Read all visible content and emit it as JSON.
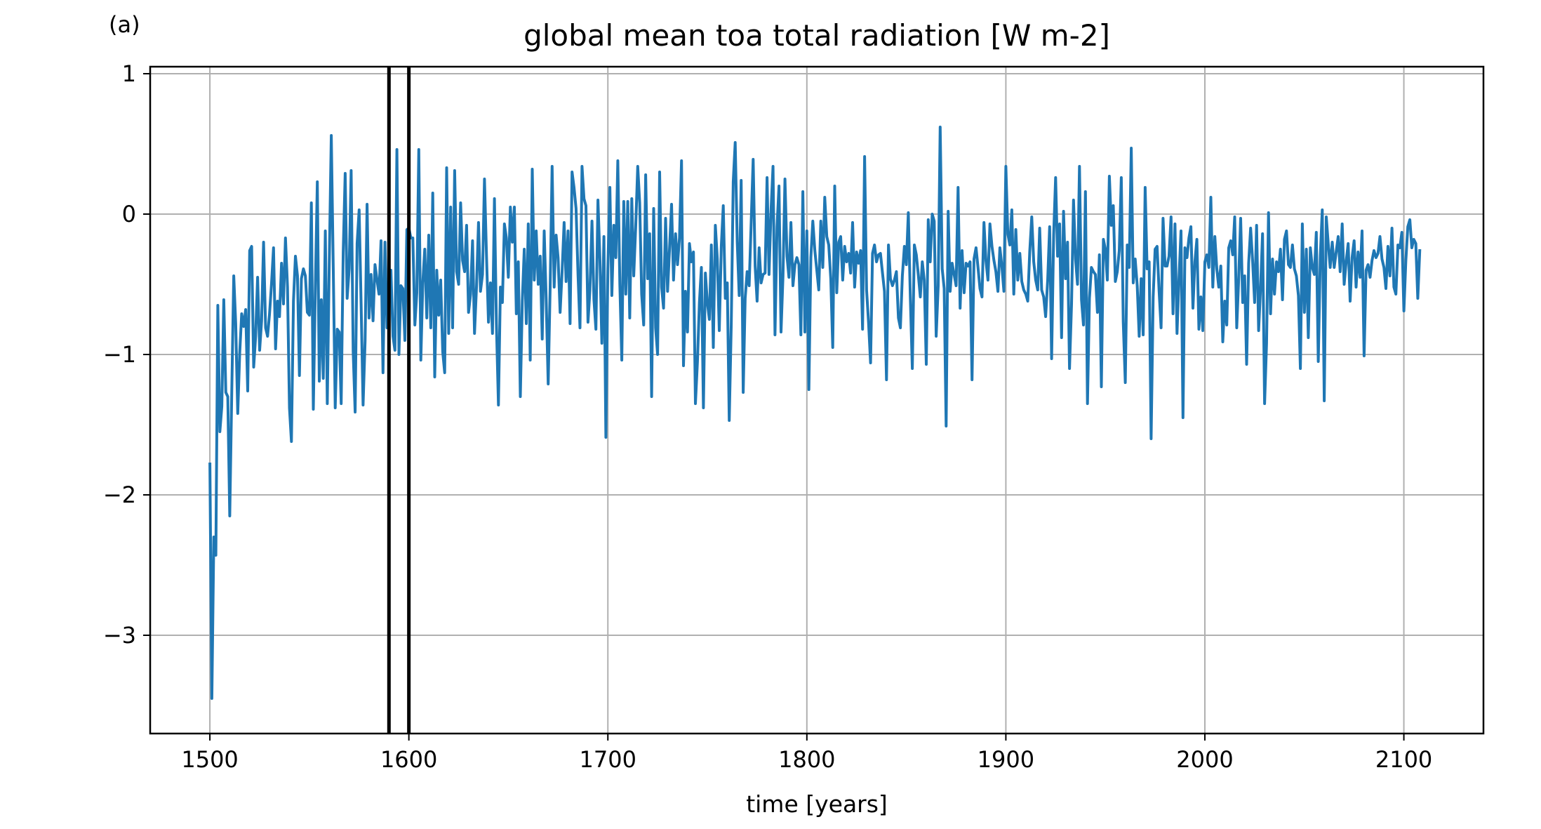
{
  "chart_data": {
    "type": "line",
    "panel_label": "(a)",
    "title": "global mean toa total radiation [W m-2]",
    "xlabel": "time [years]",
    "ylabel": "",
    "xlim": [
      1470,
      2140
    ],
    "ylim": [
      -3.7,
      1.05
    ],
    "xticks": [
      1500,
      1600,
      1700,
      1800,
      1900,
      2000,
      2100
    ],
    "yticks": [
      1,
      0,
      -1,
      -2,
      -3
    ],
    "ytick_labels": [
      "1",
      "0",
      "−1",
      "−2",
      "−3"
    ],
    "grid": true,
    "legend": "none",
    "vlines": [
      1590,
      1600
    ],
    "vline_color": "#000000",
    "series": [
      {
        "color": "#1f77b4",
        "x_start": 1500,
        "x_step": 1,
        "values": [
          -1.77,
          -3.45,
          -2.3,
          -2.43,
          -0.65,
          -1.55,
          -1.37,
          -0.61,
          -1.27,
          -1.3,
          -2.15,
          -1.26,
          -0.44,
          -0.78,
          -1.42,
          -0.99,
          -0.71,
          -0.8,
          -0.68,
          -1.26,
          -0.26,
          -0.23,
          -1.09,
          -0.87,
          -0.45,
          -0.97,
          -0.76,
          -0.2,
          -0.81,
          -0.87,
          -0.71,
          -0.49,
          -0.24,
          -0.96,
          -0.62,
          -0.73,
          -0.35,
          -0.64,
          -0.17,
          -0.52,
          -1.38,
          -1.62,
          -0.62,
          -0.3,
          -0.44,
          -1.15,
          -0.46,
          -0.39,
          -0.44,
          -0.7,
          -0.72,
          0.08,
          -1.39,
          -0.52,
          0.23,
          -1.19,
          -0.61,
          -1.17,
          -0.12,
          -1.35,
          -0.35,
          0.56,
          -0.38,
          -1.38,
          -0.82,
          -0.84,
          -1.35,
          -0.27,
          0.29,
          -0.6,
          -0.39,
          0.31,
          -0.98,
          -1.41,
          -0.21,
          0.03,
          -0.64,
          -1.36,
          -0.9,
          0.07,
          -0.74,
          -0.43,
          -0.76,
          -0.36,
          -0.47,
          -0.57,
          -0.19,
          -1.13,
          -0.2,
          -0.81,
          -0.56,
          -0.4,
          -0.87,
          -0.97,
          0.46,
          -1.0,
          -0.51,
          -0.53,
          -0.9,
          -0.11,
          -0.1,
          -0.17,
          -0.17,
          -0.79,
          -0.56,
          0.46,
          -1.04,
          -0.49,
          -0.25,
          -0.74,
          -0.15,
          -0.81,
          0.15,
          -1.16,
          -0.4,
          -0.72,
          -0.47,
          -0.98,
          -1.13,
          0.33,
          -0.85,
          0.05,
          -0.81,
          0.31,
          -0.41,
          -0.5,
          0.08,
          -0.33,
          -0.41,
          -0.08,
          -0.7,
          -0.57,
          -0.19,
          -0.85,
          -0.51,
          -0.06,
          -0.55,
          -0.43,
          0.25,
          -0.3,
          -0.77,
          -0.49,
          -0.85,
          0.11,
          -0.78,
          -1.36,
          -0.52,
          -0.63,
          -0.07,
          -0.17,
          -0.45,
          0.05,
          -0.2,
          0.05,
          -0.71,
          -0.34,
          -1.3,
          -0.62,
          -0.25,
          -0.78,
          -0.07,
          -1.04,
          0.32,
          -0.47,
          -0.12,
          -0.5,
          -0.3,
          -0.89,
          -0.12,
          -0.6,
          -1.21,
          -0.52,
          0.34,
          -0.52,
          -0.15,
          -0.31,
          -0.7,
          -0.41,
          -0.06,
          -0.48,
          -0.12,
          -0.78,
          0.3,
          0.19,
          0.04,
          -0.43,
          -0.81,
          0.34,
          0.11,
          0.06,
          -0.77,
          -0.54,
          -0.05,
          -0.61,
          -0.82,
          0.1,
          -0.32,
          -0.92,
          -0.16,
          -1.59,
          -0.39,
          0.19,
          -0.58,
          -0.08,
          -0.31,
          0.38,
          -0.5,
          -1.04,
          0.09,
          -0.57,
          0.09,
          -0.74,
          0.11,
          -0.44,
          -0.09,
          0.34,
          0.08,
          -0.57,
          -0.79,
          0.28,
          -0.46,
          -0.14,
          -1.3,
          0.04,
          -0.81,
          -1.0,
          0.3,
          -0.52,
          -0.67,
          -0.03,
          -0.55,
          -0.25,
          0.07,
          -0.47,
          -0.14,
          -0.36,
          -0.17,
          0.38,
          -1.08,
          -0.55,
          -0.84,
          -0.21,
          -0.34,
          -0.27,
          -1.35,
          -1.05,
          -0.63,
          -0.38,
          -1.38,
          -0.42,
          -0.63,
          -0.75,
          -0.22,
          -0.95,
          -0.08,
          -0.32,
          -0.83,
          -0.23,
          0.06,
          -0.6,
          -0.49,
          -1.47,
          -0.78,
          0.23,
          0.51,
          -0.2,
          -0.58,
          0.24,
          -1.27,
          -0.6,
          -0.41,
          -0.51,
          -0.07,
          0.39,
          -0.37,
          -0.62,
          -0.24,
          -0.49,
          -0.43,
          -0.42,
          0.26,
          -0.43,
          0.03,
          0.34,
          -0.86,
          -0.09,
          0.2,
          -0.84,
          -0.44,
          0.25,
          -0.3,
          -0.45,
          -0.06,
          -0.51,
          -0.36,
          -0.31,
          -0.36,
          -0.86,
          0.16,
          -0.84,
          -0.12,
          -1.25,
          -0.31,
          -0.05,
          -0.26,
          -0.4,
          -0.54,
          -0.05,
          -0.38,
          0.12,
          -0.16,
          -0.22,
          -0.46,
          -0.95,
          0.2,
          -0.56,
          -0.2,
          -0.16,
          -0.47,
          -0.23,
          -0.34,
          -0.28,
          -0.42,
          -0.06,
          -0.52,
          -0.27,
          -0.35,
          -0.26,
          -0.82,
          0.41,
          -0.54,
          -0.77,
          -1.06,
          -0.28,
          -0.22,
          -0.34,
          -0.29,
          -0.28,
          -0.42,
          -0.55,
          -1.18,
          -0.22,
          -0.46,
          -0.51,
          -0.47,
          -0.41,
          -0.74,
          -0.81,
          -0.44,
          -0.23,
          -0.36,
          0.01,
          -0.6,
          -1.1,
          -0.22,
          -0.29,
          -0.43,
          -0.59,
          -0.34,
          -0.47,
          -1.07,
          -0.04,
          -0.34,
          0.0,
          -0.05,
          -0.87,
          -0.51,
          0.62,
          -0.39,
          -0.53,
          -1.51,
          0.02,
          -0.55,
          -0.35,
          -0.43,
          -0.51,
          0.19,
          -0.67,
          -0.26,
          -0.56,
          -0.35,
          -0.37,
          -0.34,
          -1.18,
          -0.32,
          -0.24,
          -0.38,
          -0.53,
          -0.59,
          -0.06,
          -0.33,
          -0.47,
          -0.07,
          -0.23,
          -0.33,
          -0.41,
          -0.55,
          -0.24,
          -0.37,
          -0.55,
          0.34,
          -0.14,
          -0.22,
          0.03,
          -0.57,
          -0.11,
          -0.47,
          -0.28,
          -0.48,
          -0.54,
          -0.57,
          -0.62,
          -0.27,
          -0.02,
          -0.34,
          -0.47,
          -0.54,
          -0.1,
          -0.54,
          -0.59,
          -0.73,
          -0.47,
          -0.09,
          -1.03,
          -0.15,
          0.26,
          -0.3,
          -0.07,
          -0.88,
          0.02,
          -0.46,
          -0.2,
          -1.1,
          -0.64,
          0.1,
          -0.32,
          -0.5,
          0.34,
          -0.61,
          -0.79,
          0.16,
          -1.35,
          -0.6,
          -0.38,
          -0.41,
          -0.43,
          -0.7,
          -0.29,
          -1.23,
          -0.18,
          -0.25,
          -0.47,
          0.27,
          -0.08,
          0.06,
          -0.48,
          -0.41,
          -0.26,
          0.26,
          -0.77,
          -1.2,
          -0.22,
          -0.38,
          0.47,
          -0.49,
          -0.32,
          -0.51,
          -0.87,
          -0.46,
          -0.86,
          0.19,
          -0.39,
          -0.34,
          -1.6,
          -0.59,
          -0.25,
          -0.23,
          -0.55,
          -0.81,
          -0.03,
          -0.37,
          -0.37,
          -0.3,
          -0.02,
          -0.71,
          -0.07,
          -0.85,
          -0.46,
          -0.12,
          -1.45,
          -0.24,
          -0.31,
          -0.17,
          -0.09,
          -0.67,
          -0.34,
          -0.18,
          -0.82,
          -0.59,
          -0.83,
          -0.34,
          -0.29,
          -0.38,
          0.12,
          -0.52,
          -0.16,
          -0.39,
          -0.52,
          -0.37,
          -0.91,
          -0.62,
          -0.79,
          -0.24,
          -0.19,
          -0.29,
          -0.02,
          -0.81,
          -0.46,
          -0.03,
          -0.63,
          -0.44,
          -1.07,
          -0.35,
          -0.1,
          -0.33,
          -0.63,
          -0.08,
          -0.83,
          -0.52,
          -0.14,
          -1.35,
          -0.92,
          0.01,
          -0.71,
          -0.32,
          -0.57,
          -0.34,
          -0.41,
          -0.25,
          -0.61,
          -0.18,
          -0.12,
          -0.36,
          -0.38,
          -0.22,
          -0.39,
          -0.44,
          -0.58,
          -1.1,
          -0.07,
          -0.7,
          -0.25,
          -0.88,
          -0.24,
          -0.38,
          -0.43,
          -0.13,
          -1.05,
          -0.3,
          0.03,
          -1.33,
          -0.02,
          -0.21,
          -0.38,
          -0.2,
          -0.38,
          -0.27,
          -0.16,
          -0.41,
          -0.07,
          -0.5,
          -0.34,
          -0.21,
          -0.62,
          -0.31,
          -0.19,
          -0.52,
          -0.27,
          -0.45,
          -0.12,
          -1.01,
          -0.4,
          -0.36,
          -0.45,
          -0.33,
          -0.26,
          -0.31,
          -0.28,
          -0.16,
          -0.32,
          -0.38,
          -0.53,
          -0.23,
          -0.44,
          -0.1,
          -0.52,
          -0.57,
          -0.22,
          -0.24,
          -0.13,
          -0.69,
          -0.33,
          -0.09,
          -0.04,
          -0.24,
          -0.18,
          -0.21,
          -0.6,
          -0.25
        ]
      }
    ]
  }
}
